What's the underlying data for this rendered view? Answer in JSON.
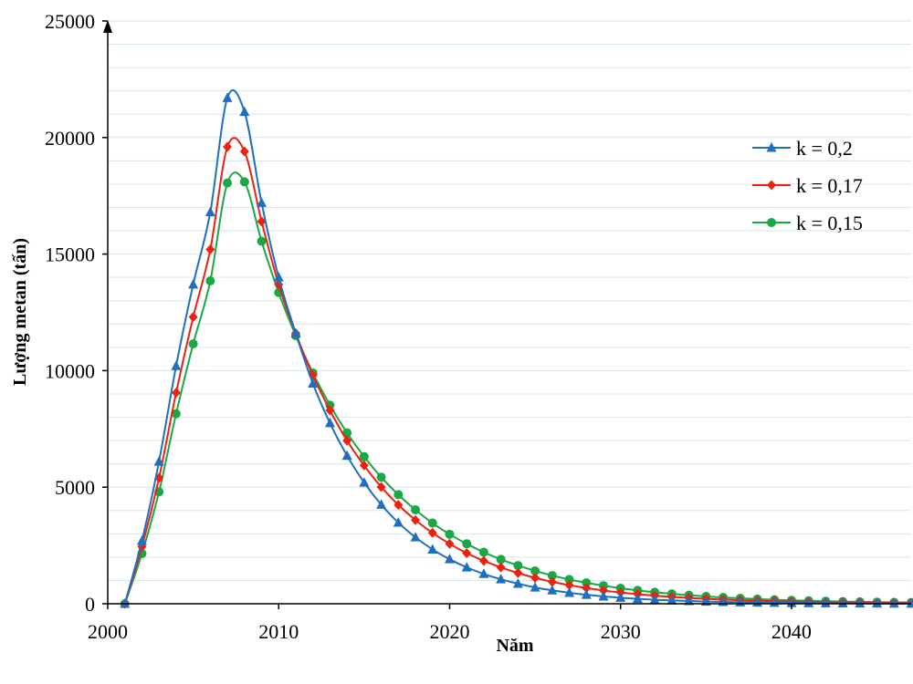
{
  "chart_data": {
    "type": "line",
    "title": "",
    "xlabel": "Năm",
    "ylabel": "Lượng metan (tấn)",
    "xlim": [
      2000,
      2047
    ],
    "ylim": [
      0,
      25000
    ],
    "xticks": [
      "2000",
      "2010",
      "2020",
      "2030",
      "2040"
    ],
    "yticks": [
      "0",
      "5000",
      "10000",
      "15000",
      "20000",
      "25000"
    ],
    "grid": "horizontal",
    "legend_position": "right",
    "x": [
      2001,
      2002,
      2003,
      2004,
      2005,
      2006,
      2007,
      2008,
      2009,
      2010,
      2011,
      2012,
      2013,
      2014,
      2015,
      2016,
      2017,
      2018,
      2019,
      2020,
      2021,
      2022,
      2023,
      2024,
      2025,
      2026,
      2027,
      2028,
      2029,
      2030,
      2031,
      2032,
      2033,
      2034,
      2035,
      2036,
      2037,
      2038,
      2039,
      2040,
      2041,
      2042,
      2043,
      2044,
      2045,
      2046,
      2047
    ],
    "series": [
      {
        "name": "k = 0,2",
        "color": "#1f6fc0",
        "marker": "triangle",
        "values": [
          0,
          2700,
          6100,
          10200,
          13700,
          16800,
          21700,
          21100,
          17200,
          14000,
          11600,
          9450,
          7750,
          6350,
          5200,
          4250,
          3480,
          2850,
          2330,
          1910,
          1560,
          1280,
          1050,
          860,
          700,
          575,
          470,
          385,
          315,
          258,
          211,
          173,
          142,
          116,
          95,
          78,
          64,
          52,
          43,
          35,
          29,
          23,
          19,
          16,
          13,
          11,
          9
        ]
      },
      {
        "name": "k = 0,17",
        "color": "#ee2010",
        "marker": "diamond",
        "values": [
          0,
          2450,
          5400,
          9050,
          12300,
          15200,
          19600,
          19400,
          16400,
          13700,
          11600,
          9800,
          8300,
          7000,
          5930,
          5010,
          4240,
          3590,
          3040,
          2570,
          2170,
          1840,
          1560,
          1320,
          1110,
          940,
          800,
          675,
          570,
          483,
          409,
          346,
          293,
          248,
          210,
          178,
          150,
          127,
          108,
          91,
          77,
          65,
          55,
          47,
          40,
          34,
          28
        ]
      },
      {
        "name": "k = 0,15",
        "color": "#18a845",
        "marker": "circle",
        "values": [
          0,
          2150,
          4800,
          8150,
          11150,
          13850,
          18050,
          18100,
          15550,
          13350,
          11500,
          9900,
          8520,
          7330,
          6310,
          5430,
          4680,
          4030,
          3460,
          2980,
          2570,
          2210,
          1900,
          1640,
          1410,
          1210,
          1040,
          900,
          775,
          667,
          574,
          494,
          425,
          366,
          315,
          271,
          233,
          201,
          173,
          149,
          128,
          110,
          95,
          82,
          70,
          60,
          52
        ]
      }
    ]
  }
}
